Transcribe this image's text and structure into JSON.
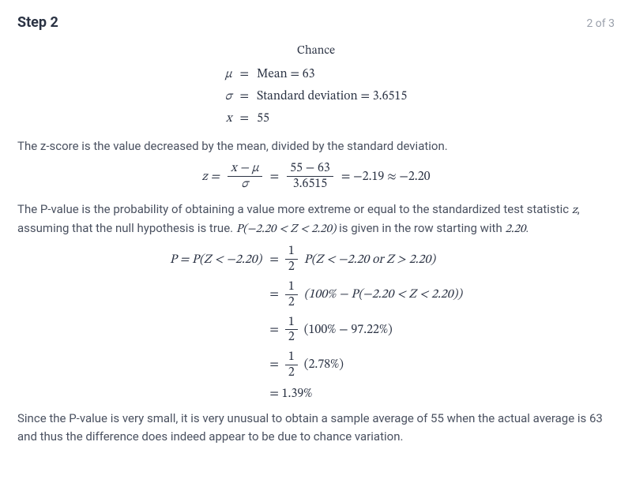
{
  "header": {
    "title": "Step 2",
    "counter": "2 of 3"
  },
  "section_title": "Chance",
  "givens": {
    "mu_sym": "μ",
    "sigma_sym": "σ",
    "x_sym": "x",
    "mu_rhs": "Mean = 63",
    "sigma_rhs": "Standard deviation = 3.6515",
    "x_rhs": "55",
    "eq": "="
  },
  "para1": "The z-score is the value decreased by the mean, divided by the standard deviation.",
  "zrow": {
    "lead": "z =",
    "frac1_num": "x − μ",
    "frac1_den": "σ",
    "eq1": "=",
    "frac2_num": "55 − 63",
    "frac2_den": "3.6515",
    "tail": "= −2.19 ≈ −2.20"
  },
  "para2_a": "The P-value is the probability of obtaining a value more extreme or equal to the standardized test statistic ",
  "para2_z": "z",
  "para2_b": ", assuming that the null hypothesis is true. ",
  "para2_expr": "P(−2.20 < Z < 2.20)",
  "para2_c": " is given in the row starting with ",
  "para2_num": "2.20",
  "para2_d": ".",
  "p_lines": {
    "l1_left": "P = P(Z < −2.20)",
    "l1_right_a": "=",
    "l1_right_frac_num": "1",
    "l1_right_frac_den": "2",
    "l1_right_b": "P(Z < −2.20 or Z > 2.20)",
    "l2_right_a": "=",
    "l2_right_frac_num": "1",
    "l2_right_frac_den": "2",
    "l2_right_b": "(100% − P(−2.20 < Z < 2.20))",
    "l3_right_a": "=",
    "l3_right_frac_num": "1",
    "l3_right_frac_den": "2",
    "l3_right_b": "(100% − 97.22%)",
    "l4_right_a": "=",
    "l4_right_frac_num": "1",
    "l4_right_frac_den": "2",
    "l4_right_b": "(2.78%)",
    "l5_right": "= 1.39%"
  },
  "para3": "Since the P-value is very small, it is very unusual to obtain a sample average of 55 when the actual average is 63 and thus the difference does indeed appear to be due to chance variation.",
  "colors": {
    "text": "#4a5160",
    "heading": "#2b3344",
    "muted": "#9aa0ab",
    "bg": "#ffffff"
  }
}
